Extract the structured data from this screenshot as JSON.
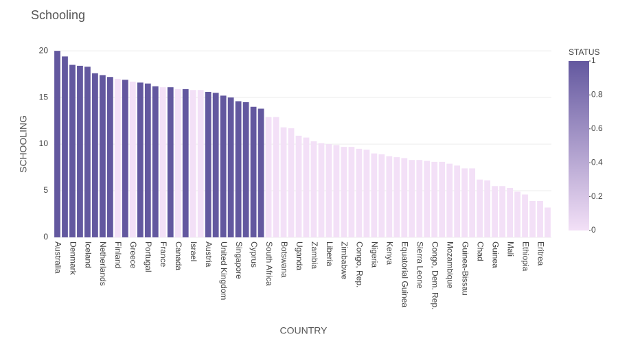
{
  "chart_data": {
    "type": "bar",
    "title": "Schooling",
    "x_label": "COUNTRY",
    "y_label": "SCHOOLING",
    "categories": [
      "Australia",
      null,
      "Denmark",
      null,
      "Iceland",
      null,
      "Netherlands",
      null,
      "Finland",
      null,
      "Greece",
      null,
      "Portugal",
      null,
      "France",
      null,
      "Canada",
      null,
      "Israel",
      null,
      "Austria",
      null,
      "United Kingdom",
      null,
      "Singapore",
      null,
      "Cyprus",
      null,
      "South Africa",
      null,
      "Botswana",
      null,
      "Uganda",
      null,
      "Zambia",
      null,
      "Liberia",
      null,
      "Zimbabwe",
      null,
      "Congo, Rep.",
      null,
      "Nigeria",
      null,
      "Kenya",
      null,
      "Equatorial Guinea",
      null,
      "Sierra Leone",
      null,
      "Congo, Dem. Rep.",
      null,
      "Mozambique",
      null,
      "Guinea-Bissau",
      null,
      "Chad",
      null,
      "Guinea",
      null,
      "Mali",
      null,
      "Ethiopia",
      null,
      "Eritrea",
      null
    ],
    "values": [
      20.0,
      19.4,
      18.5,
      18.4,
      18.3,
      17.6,
      17.4,
      17.2,
      17.0,
      16.9,
      16.7,
      16.6,
      16.5,
      16.2,
      16.1,
      16.1,
      15.9,
      15.9,
      15.8,
      15.8,
      15.6,
      15.5,
      15.2,
      15.0,
      14.6,
      14.5,
      14.0,
      13.8,
      12.9,
      12.9,
      11.8,
      11.7,
      10.9,
      10.7,
      10.3,
      10.1,
      10.0,
      9.9,
      9.7,
      9.7,
      9.5,
      9.4,
      9.0,
      8.9,
      8.7,
      8.6,
      8.5,
      8.3,
      8.3,
      8.2,
      8.1,
      8.1,
      7.9,
      7.7,
      7.4,
      7.4,
      6.2,
      6.1,
      5.5,
      5.5,
      5.3,
      4.9,
      4.6,
      3.9,
      3.9,
      3.2
    ],
    "status": [
      1,
      1,
      1,
      1,
      1,
      1,
      1,
      1,
      0,
      1,
      0,
      1,
      1,
      1,
      0,
      1,
      0,
      1,
      0,
      0,
      1,
      1,
      1,
      1,
      1,
      1,
      1,
      1,
      0,
      0,
      0,
      0,
      0,
      0,
      0,
      0,
      0,
      0,
      0,
      0,
      0,
      0,
      0,
      0,
      0,
      0,
      0,
      0,
      0,
      0,
      0,
      0,
      0,
      0,
      0,
      0,
      0,
      0,
      0,
      0,
      0,
      0,
      0,
      0,
      0,
      0
    ],
    "colorscale": [
      "#f3e0f7",
      "#63589f"
    ],
    "colorbar_title": "STATUS",
    "colorbar_ticks": [
      0,
      0.2,
      0.4,
      0.6,
      0.8,
      1
    ],
    "colorbar_lim": [
      0,
      1
    ],
    "ylim": [
      0,
      20.6
    ],
    "yticks": [
      0,
      5,
      10,
      15,
      20
    ],
    "grid": true
  }
}
